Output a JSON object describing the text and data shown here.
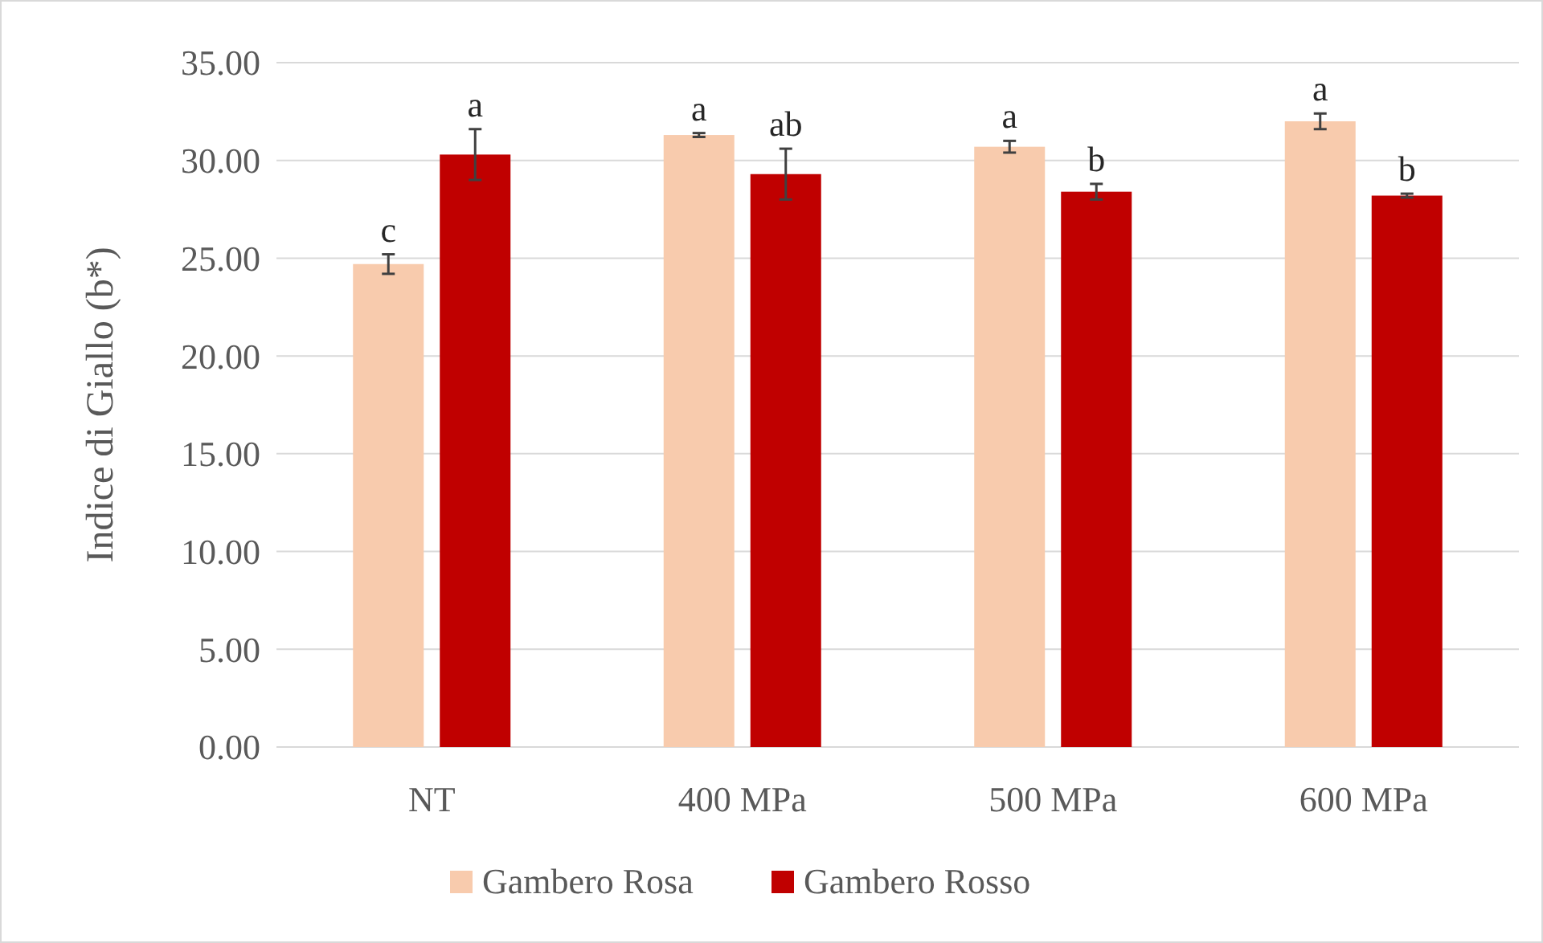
{
  "chart_data": {
    "type": "bar",
    "ylabel": "Indice di Giallo (b*)",
    "categories": [
      "NT",
      "400 MPa",
      "500 MPa",
      "600 MPa"
    ],
    "series": [
      {
        "name": "Gambero Rosa",
        "color": "#f8cbad",
        "values": [
          24.7,
          31.3,
          30.7,
          32.0
        ],
        "errors": [
          0.5,
          0.1,
          0.3,
          0.4
        ]
      },
      {
        "name": "Gambero Rosso",
        "color": "#c00000",
        "values": [
          30.3,
          29.3,
          28.4,
          28.2
        ],
        "errors": [
          1.3,
          1.3,
          0.4,
          0.1
        ]
      }
    ],
    "ylim": [
      0,
      35
    ],
    "yticks": [
      {
        "value": 0,
        "label": "0.00"
      },
      {
        "value": 5,
        "label": "5.00"
      },
      {
        "value": 10,
        "label": "10.00"
      },
      {
        "value": 15,
        "label": "15.00"
      },
      {
        "value": 20,
        "label": "20.00"
      },
      {
        "value": 25,
        "label": "25.00"
      },
      {
        "value": 30,
        "label": "30.00"
      },
      {
        "value": 35,
        "label": "35.00"
      }
    ],
    "grid": "y",
    "legend": "bottom",
    "annotations": [
      "c",
      "a",
      "a",
      "ab",
      "a",
      "b",
      "a",
      "b"
    ]
  }
}
